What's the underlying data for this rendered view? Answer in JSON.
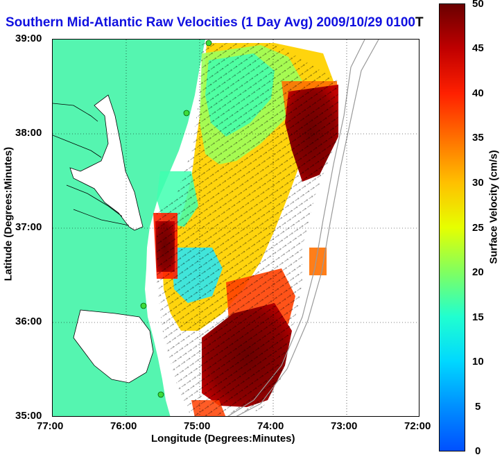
{
  "title": {
    "main": "Southern Mid-Atlantic Raw Velocities (1 Day Avg) 2009/10/29 0100",
    "tail": "T"
  },
  "axes": {
    "xlabel": "Longitude (Degrees:Minutes)",
    "ylabel": "Latitude (Degrees:Minutes)",
    "xticks": [
      "77:00",
      "76:00",
      "75:00",
      "74:00",
      "73:00",
      "72:00"
    ],
    "yticks": [
      "39:00",
      "38:00",
      "37:00",
      "36:00",
      "35:00"
    ]
  },
  "colorbar": {
    "label": "Surface Velocity (cm/s)",
    "ticks": [
      "50",
      "45",
      "40",
      "35",
      "30",
      "25",
      "20",
      "15",
      "10",
      "5",
      "0"
    ],
    "colors": [
      "#0050ff",
      "#00d8ff",
      "#20ffd0",
      "#80ff60",
      "#e6ff00",
      "#ffc000",
      "#ff7000",
      "#ff2000",
      "#c00000",
      "#6a0000"
    ]
  },
  "map": {
    "land_color": "#55f5b0",
    "coast_color": "#000000",
    "shelf_line_color": "#999999",
    "station_color": "#3cdc3c"
  }
}
